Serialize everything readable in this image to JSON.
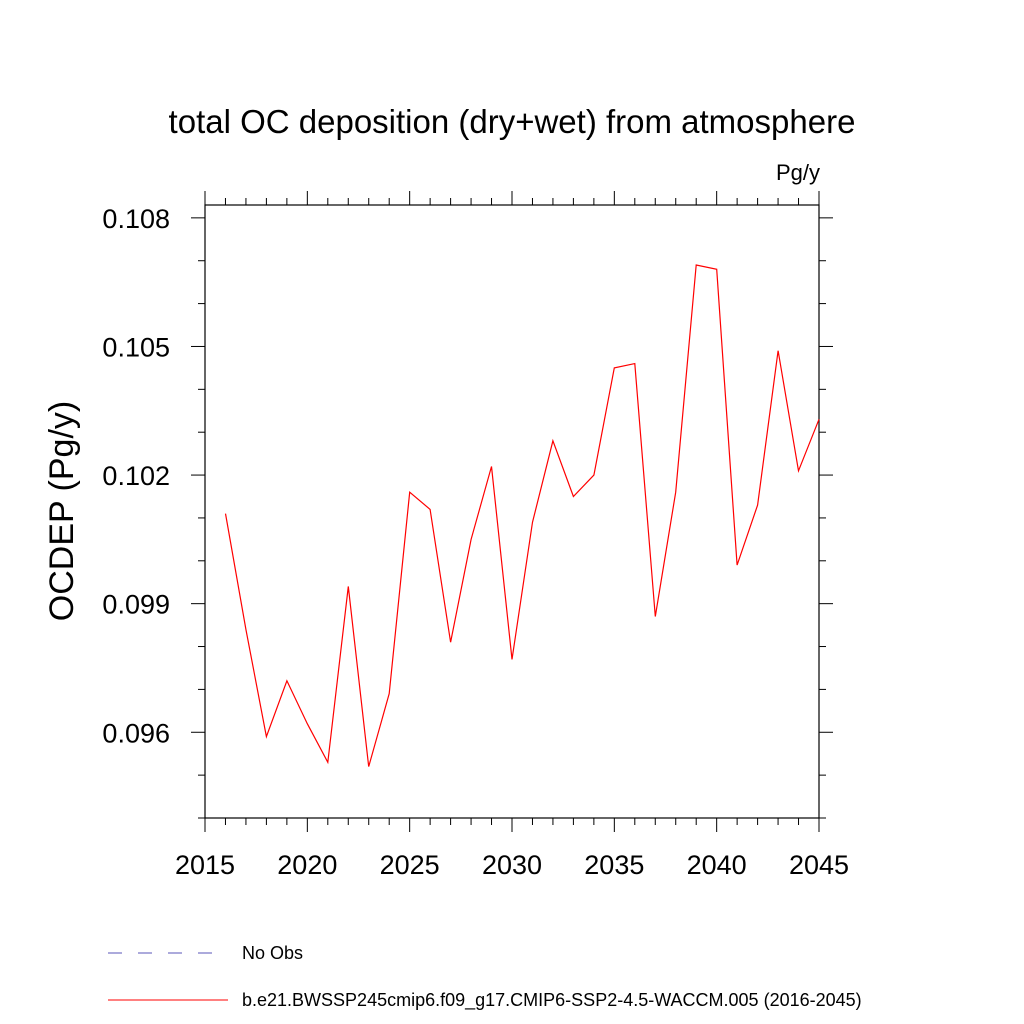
{
  "chart_data": {
    "type": "line",
    "title": "total OC deposition (dry+wet) from atmosphere",
    "units_label": "Pg/y",
    "xlabel": "",
    "ylabel": "OCDEP  (Pg/y)",
    "xlim": [
      2015,
      2045
    ],
    "ylim": [
      0.094,
      0.1083
    ],
    "x_ticks": [
      2015,
      2020,
      2025,
      2030,
      2035,
      2040,
      2045
    ],
    "x_tick_labels": [
      "2015",
      "2020",
      "2025",
      "2030",
      "2035",
      "2040",
      "2045"
    ],
    "y_ticks": [
      0.096,
      0.099,
      0.102,
      0.105,
      0.108
    ],
    "y_tick_labels": [
      "0.096",
      "0.099",
      "0.102",
      "0.105",
      "0.108"
    ],
    "y_minor_step": 0.001,
    "x_minor_step": 1,
    "series": [
      {
        "name": "b.e21.BWSSP245cmip6.f09_g17.CMIP6-SSP2-4.5-WACCM.005 (2016-2045)",
        "color": "#ff0000",
        "style": "solid",
        "x": [
          2016,
          2017,
          2018,
          2019,
          2020,
          2021,
          2022,
          2023,
          2024,
          2025,
          2026,
          2027,
          2028,
          2029,
          2030,
          2031,
          2032,
          2033,
          2034,
          2035,
          2036,
          2037,
          2038,
          2039,
          2040,
          2041,
          2042,
          2043,
          2044,
          2045
        ],
        "values": [
          0.1011,
          0.0984,
          0.0959,
          0.0972,
          0.0962,
          0.0953,
          0.0994,
          0.0952,
          0.0969,
          0.1016,
          0.1012,
          0.0981,
          0.1005,
          0.1022,
          0.0977,
          0.1009,
          0.1028,
          0.1015,
          0.102,
          0.1045,
          0.1046,
          0.0987,
          0.1016,
          0.1069,
          0.1068,
          0.0999,
          0.1013,
          0.1049,
          0.1021,
          0.1033
        ]
      }
    ],
    "legend": [
      {
        "label": "No Obs",
        "color": "#5a55b8",
        "style": "dashed"
      },
      {
        "label": "b.e21.BWSSP245cmip6.f09_g17.CMIP6-SSP2-4.5-WACCM.005 (2016-2045)",
        "color": "#ff0000",
        "style": "solid"
      }
    ],
    "legend_position": "bottom-left",
    "grid": false
  }
}
